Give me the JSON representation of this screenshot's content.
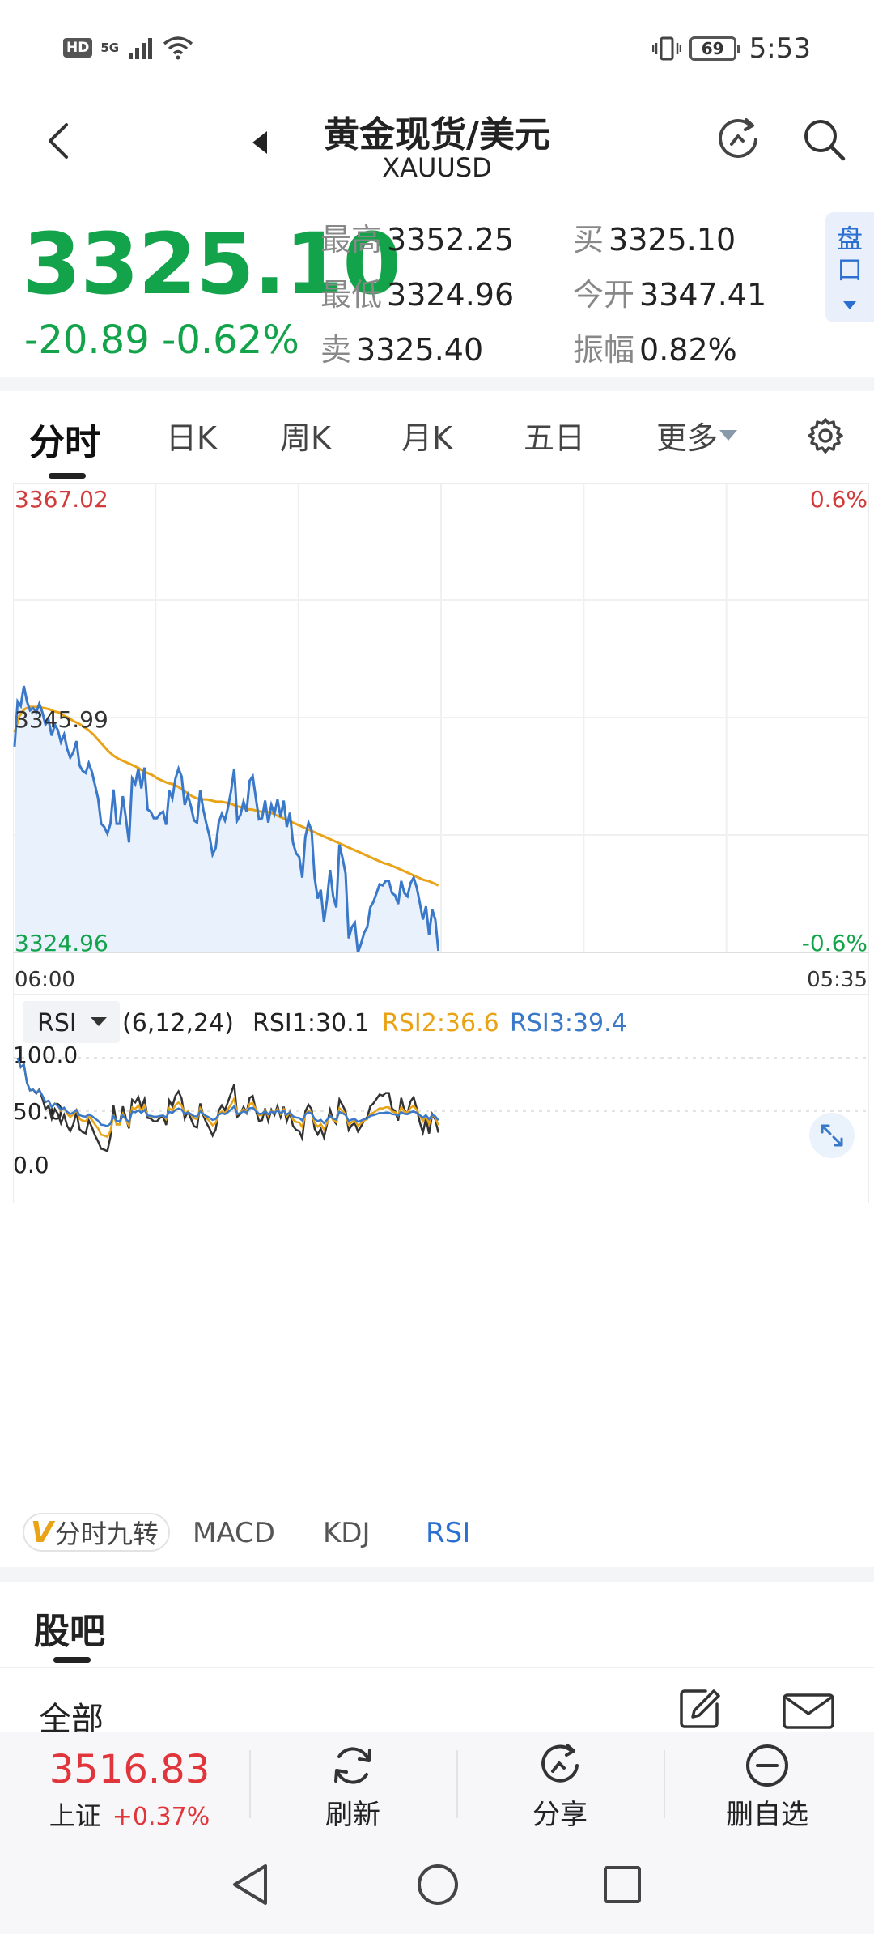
{
  "status_bar": {
    "network_badge": "HD",
    "network_type": "5G",
    "battery": "69",
    "time": "5:53"
  },
  "header": {
    "title": "黄金现货/美元",
    "symbol": "XAUUSD"
  },
  "quote": {
    "price": "3325.10",
    "change": "-20.89",
    "change_pct": "-0.62%",
    "high_label": "最高",
    "high": "3352.25",
    "low_label": "最低",
    "low": "3324.96",
    "sell_label": "卖",
    "sell": "3325.40",
    "buy_label": "买",
    "buy": "3325.10",
    "open_label": "今开",
    "open": "3347.41",
    "amplitude_label": "振幅",
    "amplitude": "0.82%",
    "pankou_label": "盘口",
    "up_color": "#e0363b",
    "down_color": "#13a34a"
  },
  "tabs": [
    "分时",
    "日K",
    "周K",
    "月K",
    "五日",
    "更多"
  ],
  "chart": {
    "y_top": "3367.02",
    "y_mid": "3345.99",
    "y_bottom": "3324.96",
    "pct_top": "0.6%",
    "pct_bottom": "-0.6%",
    "time_start": "06:00",
    "time_end": "05:35"
  },
  "rsi": {
    "selector": "RSI",
    "params": "(6,12,24)",
    "rsi1": "RSI1:30.1",
    "rsi2": "RSI2:36.6",
    "rsi3": "RSI3:39.4",
    "y100": "100.0",
    "y50": "50.0",
    "y0": "0.0",
    "colors": {
      "rsi1": "#333333",
      "rsi2": "#e8a317",
      "rsi3": "#3a78c9"
    }
  },
  "indicator_tabs": {
    "jiuzhuan": "分时九转",
    "macd": "MACD",
    "kdj": "KDJ",
    "rsi": "RSI"
  },
  "guba": {
    "title": "股吧",
    "filter": "全部"
  },
  "bottom_bar": {
    "index_value": "3516.83",
    "index_name": "上证",
    "index_change": "+0.37%",
    "refresh": "刷新",
    "share": "分享",
    "remove_watchlist": "删自选"
  },
  "chart_data": {
    "type": "line",
    "x_range": [
      "06:00",
      "05:35"
    ],
    "ylim": [
      3324.96,
      3367.02
    ],
    "pct_range": [
      "-0.6%",
      "0.6%"
    ],
    "y_ticks": [
      3367.02,
      3345.99,
      3324.96
    ],
    "series": [
      {
        "color": "#3a78c9",
        "fill": "#e9f2fc",
        "values": [
          3343.5,
          3347.6,
          3347.2,
          3349.0,
          3347.6,
          3346.8,
          3347.0,
          3346.6,
          3347.4,
          3346.6,
          3345.5,
          3345.9,
          3344.5,
          3345.5,
          3345.0,
          3343.9,
          3344.6,
          3343.3,
          3342.5,
          3343.0,
          3344.0,
          3341.8,
          3341.3,
          3341.1,
          3342.0,
          3341.2,
          3340.0,
          3338.8,
          3336.5,
          3336.2,
          3335.6,
          3336.5,
          3339.6,
          3336.5,
          3336.5,
          3339.0,
          3337.0,
          3334.8,
          3340.6,
          3340.1,
          3341.5,
          3339.7,
          3341.6,
          3337.8,
          3337.6,
          3337.0,
          3337.0,
          3337.4,
          3337.6,
          3336.4,
          3339.5,
          3338.8,
          3340.6,
          3341.5,
          3340.8,
          3338.2,
          3339.1,
          3338.1,
          3336.8,
          3336.6,
          3339.5,
          3337.8,
          3336.5,
          3335.4,
          3333.7,
          3334.3,
          3336.6,
          3337.4,
          3336.8,
          3338.0,
          3339.5,
          3341.5,
          3336.8,
          3337.3,
          3338.5,
          3337.6,
          3340.4,
          3340.8,
          3338.8,
          3336.9,
          3337.0,
          3338.6,
          3336.6,
          3338.2,
          3337.4,
          3338.7,
          3337.1,
          3338.6,
          3336.2,
          3337.5,
          3334.8,
          3333.8,
          3333.5,
          3331.6,
          3335.3,
          3336.6,
          3335.9,
          3331.6,
          3329.7,
          3330.5,
          3327.6,
          3329.6,
          3332.3,
          3329.9,
          3328.9,
          3334.6,
          3333.4,
          3332.0,
          3326.1,
          3327.1,
          3327.5,
          3324.8,
          3325.6,
          3326.6,
          3327.1,
          3328.9,
          3329.4,
          3330.2,
          3331.0,
          3330.9,
          3331.3,
          3331.3,
          3330.2,
          3330.0,
          3329.2,
          3331.3,
          3330.2,
          3329.9,
          3331.1,
          3331.6,
          3330.7,
          3329.3,
          3327.8,
          3329.0,
          3326.4,
          3328.7,
          3327.8,
          3324.96
        ]
      },
      {
        "color": "#e8a317",
        "values": [
          3344.8,
          3346.3,
          3346.9,
          3347.1,
          3347.1,
          3347.1,
          3347.0,
          3346.9,
          3346.7,
          3346.6,
          3346.3,
          3346.1,
          3345.8,
          3345.6,
          3345.3,
          3345.0,
          3344.6,
          3344.1,
          3343.6,
          3343.1,
          3342.7,
          3342.4,
          3342.2,
          3342.0,
          3341.8,
          3341.6,
          3341.3,
          3341.1,
          3340.9,
          3340.6,
          3340.4,
          3340.2,
          3340.1,
          3339.9,
          3339.6,
          3339.3,
          3339.0,
          3338.8,
          3338.7,
          3338.7,
          3338.6,
          3338.5,
          3338.5,
          3338.4,
          3338.3,
          3338.1,
          3338.0,
          3337.8,
          3337.8,
          3337.7,
          3337.6,
          3337.6,
          3337.5,
          3337.3,
          3337.1,
          3336.9,
          3336.7,
          3336.5,
          3336.3,
          3336.1,
          3335.9,
          3335.7,
          3335.5,
          3335.3,
          3335.1,
          3334.9,
          3334.7,
          3334.5,
          3334.3,
          3334.1,
          3333.9,
          3333.7,
          3333.5,
          3333.3,
          3333.1,
          3332.9,
          3332.8,
          3332.6,
          3332.4,
          3332.2,
          3332.0,
          3331.8,
          3331.6,
          3331.4,
          3331.3,
          3331.1,
          3330.9
        ]
      }
    ]
  }
}
